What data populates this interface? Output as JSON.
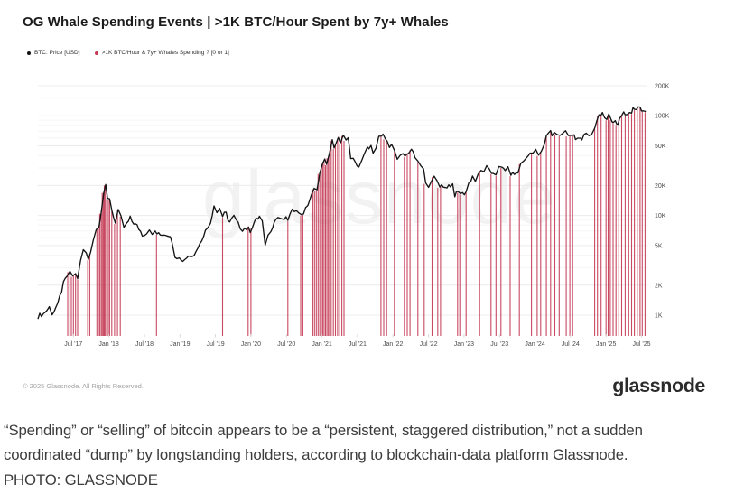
{
  "header": {
    "title": "OG Whale Spending Events | >1K BTC/Hour Spent by 7y+ Whales"
  },
  "legend": {
    "items": [
      {
        "label": "BTC: Price [USD]",
        "color": "#141414"
      },
      {
        "label": ">1K BTC/Hour & 7y+ Whales Spending ? [0 or 1]",
        "color": "#c43a55"
      }
    ]
  },
  "watermark": "glassnode",
  "footer": {
    "copyright": "© 2025 Glassnode. All Rights Reserved.",
    "brand": "glassnode"
  },
  "caption": {
    "line1": "“Spending” or “selling” of bitcoin appears to be a “persistent, staggered distribution,” not a sudden",
    "line2": "coordinated “dump” by longstanding holders, according to blockchain-data platform Glassnode.",
    "credit": "PHOTO: GLASSNODE"
  },
  "chart_data": {
    "type": "line",
    "title": "OG Whale Spending Events | >1K BTC/Hour Spent by 7y+ Whales",
    "y_scale": "log",
    "x_range": [
      2017.0,
      2025.57
    ],
    "ylim": [
      650,
      200000
    ],
    "grid": true,
    "legend_position": "top-left",
    "y_ticks": [
      {
        "label": "1K",
        "value": 1000
      },
      {
        "label": "2K",
        "value": 2000
      },
      {
        "label": "5K",
        "value": 5000
      },
      {
        "label": "10K",
        "value": 10000
      },
      {
        "label": "20K",
        "value": 20000
      },
      {
        "label": "50K",
        "value": 50000
      },
      {
        "label": "100K",
        "value": 100000
      },
      {
        "label": "200K",
        "value": 200000
      }
    ],
    "y_minor": [
      3000,
      4000,
      6000,
      7000,
      8000,
      9000,
      30000,
      40000,
      60000,
      70000,
      80000,
      90000,
      150000
    ],
    "x_ticks": [
      {
        "label": "Jul '17",
        "t": 2017.5
      },
      {
        "label": "Jan '18",
        "t": 2018.0
      },
      {
        "label": "Jul '18",
        "t": 2018.5
      },
      {
        "label": "Jan '19",
        "t": 2019.0
      },
      {
        "label": "Jul '19",
        "t": 2019.5
      },
      {
        "label": "Jan '20",
        "t": 2020.0
      },
      {
        "label": "Jul '20",
        "t": 2020.5
      },
      {
        "label": "Jan '21",
        "t": 2021.0
      },
      {
        "label": "Jul '21",
        "t": 2021.5
      },
      {
        "label": "Jan '22",
        "t": 2022.0
      },
      {
        "label": "Jul '22",
        "t": 2022.5
      },
      {
        "label": "Jan '23",
        "t": 2023.0
      },
      {
        "label": "Jul '23",
        "t": 2023.5
      },
      {
        "label": "Jan '24",
        "t": 2024.0
      },
      {
        "label": "Jul '24",
        "t": 2024.5
      },
      {
        "label": "Jan '25",
        "t": 2025.0
      },
      {
        "label": "Jul '25",
        "t": 2025.5
      }
    ],
    "series": [
      {
        "name": "BTC: Price [USD]",
        "color": "#141414",
        "points": [
          [
            2017.0,
            960
          ],
          [
            2017.1,
            1070
          ],
          [
            2017.16,
            1190
          ],
          [
            2017.2,
            1030
          ],
          [
            2017.28,
            1290
          ],
          [
            2017.36,
            2050
          ],
          [
            2017.41,
            2450
          ],
          [
            2017.45,
            2650
          ],
          [
            2017.49,
            2450
          ],
          [
            2017.53,
            2600
          ],
          [
            2017.56,
            2400
          ],
          [
            2017.6,
            3400
          ],
          [
            2017.64,
            4450
          ],
          [
            2017.68,
            4150
          ],
          [
            2017.71,
            3700
          ],
          [
            2017.74,
            4350
          ],
          [
            2017.78,
            5650
          ],
          [
            2017.82,
            7300
          ],
          [
            2017.86,
            8000
          ],
          [
            2017.89,
            11000
          ],
          [
            2017.93,
            17500
          ],
          [
            2017.955,
            19300
          ],
          [
            2017.98,
            14500
          ],
          [
            2018.01,
            15000
          ],
          [
            2018.04,
            11500
          ],
          [
            2018.09,
            8300
          ],
          [
            2018.13,
            10800
          ],
          [
            2018.17,
            9500
          ],
          [
            2018.21,
            7600
          ],
          [
            2018.25,
            8200
          ],
          [
            2018.3,
            9400
          ],
          [
            2018.35,
            8400
          ],
          [
            2018.42,
            7450
          ],
          [
            2018.47,
            6350
          ],
          [
            2018.53,
            6700
          ],
          [
            2018.57,
            7450
          ],
          [
            2018.61,
            6350
          ],
          [
            2018.65,
            7000
          ],
          [
            2018.7,
            6450
          ],
          [
            2018.77,
            6500
          ],
          [
            2018.84,
            6350
          ],
          [
            2018.89,
            5500
          ],
          [
            2018.93,
            3950
          ],
          [
            2018.99,
            3750
          ],
          [
            2019.04,
            3500
          ],
          [
            2019.12,
            3900
          ],
          [
            2019.2,
            4050
          ],
          [
            2019.28,
            5200
          ],
          [
            2019.36,
            7100
          ],
          [
            2019.43,
            8600
          ],
          [
            2019.48,
            12700
          ],
          [
            2019.52,
            10700
          ],
          [
            2019.56,
            11800
          ],
          [
            2019.6,
            10000
          ],
          [
            2019.65,
            10300
          ],
          [
            2019.7,
            8500
          ],
          [
            2019.76,
            9700
          ],
          [
            2019.82,
            8100
          ],
          [
            2019.88,
            7300
          ],
          [
            2019.94,
            7400
          ],
          [
            2019.99,
            7150
          ],
          [
            2020.05,
            8700
          ],
          [
            2020.12,
            9800
          ],
          [
            2020.16,
            8700
          ],
          [
            2020.2,
            4900
          ],
          [
            2020.24,
            6500
          ],
          [
            2020.28,
            6900
          ],
          [
            2020.33,
            8900
          ],
          [
            2020.38,
            9600
          ],
          [
            2020.44,
            9050
          ],
          [
            2020.52,
            9200
          ],
          [
            2020.58,
            11200
          ],
          [
            2020.64,
            11700
          ],
          [
            2020.68,
            10300
          ],
          [
            2020.74,
            10700
          ],
          [
            2020.8,
            12900
          ],
          [
            2020.85,
            15500
          ],
          [
            2020.89,
            18000
          ],
          [
            2020.93,
            19200
          ],
          [
            2020.97,
            26000
          ],
          [
            2021.01,
            32000
          ],
          [
            2021.04,
            38500
          ],
          [
            2021.065,
            31500
          ],
          [
            2021.09,
            37000
          ],
          [
            2021.12,
            47500
          ],
          [
            2021.145,
            57000
          ],
          [
            2021.17,
            46500
          ],
          [
            2021.2,
            52000
          ],
          [
            2021.23,
            59000
          ],
          [
            2021.26,
            55000
          ],
          [
            2021.3,
            63200
          ],
          [
            2021.34,
            55500
          ],
          [
            2021.37,
            57500
          ],
          [
            2021.405,
            37000
          ],
          [
            2021.44,
            37500
          ],
          [
            2021.47,
            33000
          ],
          [
            2021.52,
            31800
          ],
          [
            2021.56,
            34500
          ],
          [
            2021.6,
            42000
          ],
          [
            2021.64,
            47500
          ],
          [
            2021.66,
            44000
          ],
          [
            2021.69,
            49800
          ],
          [
            2021.72,
            43800
          ],
          [
            2021.76,
            48000
          ],
          [
            2021.8,
            61000
          ],
          [
            2021.84,
            63000
          ],
          [
            2021.86,
            67800
          ],
          [
            2021.89,
            58500
          ],
          [
            2021.92,
            57000
          ],
          [
            2021.95,
            48500
          ],
          [
            2021.98,
            50500
          ],
          [
            2022.02,
            43500
          ],
          [
            2022.06,
            36900
          ],
          [
            2022.1,
            40000
          ],
          [
            2022.14,
            44300
          ],
          [
            2022.17,
            39000
          ],
          [
            2022.22,
            41000
          ],
          [
            2022.26,
            46500
          ],
          [
            2022.31,
            39800
          ],
          [
            2022.35,
            36000
          ],
          [
            2022.39,
            29800
          ],
          [
            2022.43,
            30200
          ],
          [
            2022.46,
            20500
          ],
          [
            2022.5,
            19200
          ],
          [
            2022.54,
            21500
          ],
          [
            2022.58,
            24200
          ],
          [
            2022.62,
            23000
          ],
          [
            2022.66,
            19900
          ],
          [
            2022.71,
            18900
          ],
          [
            2022.76,
            19400
          ],
          [
            2022.81,
            20300
          ],
          [
            2022.84,
            20600
          ],
          [
            2022.87,
            16300
          ],
          [
            2022.92,
            17100
          ],
          [
            2022.98,
            16700
          ],
          [
            2023.03,
            17200
          ],
          [
            2023.07,
            21200
          ],
          [
            2023.12,
            24500
          ],
          [
            2023.16,
            22300
          ],
          [
            2023.2,
            25000
          ],
          [
            2023.24,
            28300
          ],
          [
            2023.28,
            28000
          ],
          [
            2023.32,
            29900
          ],
          [
            2023.36,
            27300
          ],
          [
            2023.41,
            26600
          ],
          [
            2023.45,
            26200
          ],
          [
            2023.49,
            30600
          ],
          [
            2023.53,
            30300
          ],
          [
            2023.58,
            29200
          ],
          [
            2023.62,
            29900
          ],
          [
            2023.66,
            25900
          ],
          [
            2023.71,
            26100
          ],
          [
            2023.76,
            27200
          ],
          [
            2023.8,
            34000
          ],
          [
            2023.84,
            34800
          ],
          [
            2023.88,
            37500
          ],
          [
            2023.93,
            43500
          ],
          [
            2023.97,
            42200
          ],
          [
            2024.01,
            43900
          ],
          [
            2024.05,
            40100
          ],
          [
            2024.09,
            42800
          ],
          [
            2024.13,
            51500
          ],
          [
            2024.16,
            62000
          ],
          [
            2024.19,
            68000
          ],
          [
            2024.22,
            71500
          ],
          [
            2024.24,
            63500
          ],
          [
            2024.27,
            70500
          ],
          [
            2024.31,
            66000
          ],
          [
            2024.35,
            62500
          ],
          [
            2024.39,
            67000
          ],
          [
            2024.43,
            70500
          ],
          [
            2024.47,
            61500
          ],
          [
            2024.51,
            62700
          ],
          [
            2024.55,
            67800
          ],
          [
            2024.57,
            57500
          ],
          [
            2024.6,
            60500
          ],
          [
            2024.64,
            59200
          ],
          [
            2024.66,
            54500
          ],
          [
            2024.69,
            63500
          ],
          [
            2024.72,
            65800
          ],
          [
            2024.76,
            62200
          ],
          [
            2024.8,
            67500
          ],
          [
            2024.84,
            73000
          ],
          [
            2024.87,
            91000
          ],
          [
            2024.9,
            98000
          ],
          [
            2024.93,
            95500
          ],
          [
            2024.95,
            106000
          ],
          [
            2024.98,
            96500
          ],
          [
            2025.01,
            94500
          ],
          [
            2025.03,
            102500
          ],
          [
            2025.04,
            105000
          ],
          [
            2025.07,
            96800
          ],
          [
            2025.09,
            85500
          ],
          [
            2025.11,
            83500
          ],
          [
            2025.13,
            87200
          ],
          [
            2025.15,
            82200
          ],
          [
            2025.17,
            86500
          ],
          [
            2025.19,
            95000
          ],
          [
            2025.22,
            98000
          ],
          [
            2025.25,
            109000
          ],
          [
            2025.27,
            104500
          ],
          [
            2025.3,
            106800
          ],
          [
            2025.33,
            108800
          ],
          [
            2025.36,
            110000
          ],
          [
            2025.38,
            119500
          ],
          [
            2025.4,
            117800
          ],
          [
            2025.43,
            114500
          ],
          [
            2025.45,
            118500
          ],
          [
            2025.48,
            121500
          ],
          [
            2025.5,
            113500
          ],
          [
            2025.52,
            112000
          ],
          [
            2025.54,
            116000
          ],
          [
            2025.56,
            110500
          ]
        ]
      }
    ],
    "events": {
      "name": ">1K BTC/Hour & 7y+ Whales Spending ? [0 or 1]",
      "color": "#c43a55",
      "dates": [
        2017.42,
        2017.45,
        2017.47,
        2017.5,
        2017.53,
        2017.56,
        2017.7,
        2017.73,
        2017.83,
        2017.85,
        2017.87,
        2017.89,
        2017.905,
        2017.92,
        2017.935,
        2017.95,
        2017.97,
        2017.99,
        2018.01,
        2018.04,
        2018.08,
        2018.12,
        2018.16,
        2018.67,
        2019.6,
        2019.96,
        2020.0,
        2020.52,
        2020.7,
        2020.73,
        2020.87,
        2020.895,
        2020.92,
        2020.945,
        2020.97,
        2020.99,
        2021.01,
        2021.03,
        2021.05,
        2021.07,
        2021.09,
        2021.11,
        2021.13,
        2021.16,
        2021.19,
        2021.22,
        2021.25,
        2021.28,
        2021.31,
        2021.83,
        2021.87,
        2021.91,
        2022.02,
        2022.16,
        2022.2,
        2022.24,
        2022.35,
        2022.44,
        2022.55,
        2022.63,
        2022.67,
        2022.91,
        2022.94,
        2023.03,
        2023.22,
        2023.38,
        2023.45,
        2023.52,
        2023.65,
        2023.78,
        2023.95,
        2024.03,
        2024.08,
        2024.16,
        2024.22,
        2024.28,
        2024.34,
        2024.44,
        2024.49,
        2024.53,
        2024.84,
        2024.88,
        2024.93,
        2025.0,
        2025.03,
        2025.06,
        2025.1,
        2025.14,
        2025.18,
        2025.22,
        2025.27,
        2025.32,
        2025.36,
        2025.4,
        2025.44,
        2025.48,
        2025.51,
        2025.55
      ]
    }
  }
}
